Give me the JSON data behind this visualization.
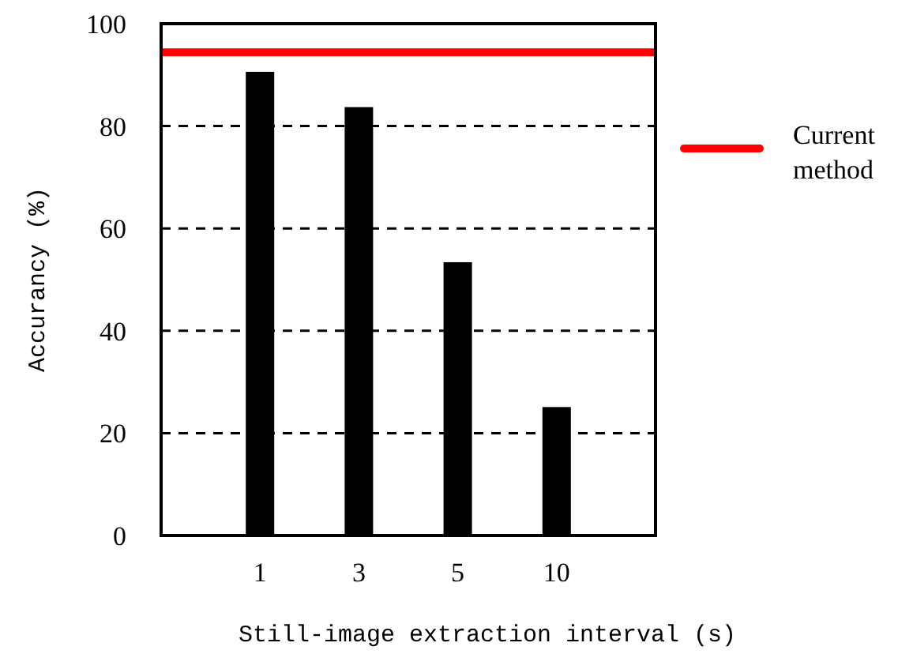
{
  "chart_data": {
    "type": "bar",
    "xlabel": "Still-image extraction interval (s)",
    "ylabel": "Accurancy (%)",
    "categories": [
      "1",
      "3",
      "5",
      "10"
    ],
    "values": [
      90.6,
      83.7,
      53.4,
      25.1
    ],
    "color": "#000000",
    "ylim": [
      0,
      100
    ],
    "yticks": [
      0,
      20,
      40,
      60,
      80,
      100
    ],
    "grid": "y",
    "ref_lines": [
      {
        "axis": "y",
        "value": 94.4,
        "label": "Current method",
        "color": "#ff0000"
      }
    ],
    "legend": "right"
  }
}
